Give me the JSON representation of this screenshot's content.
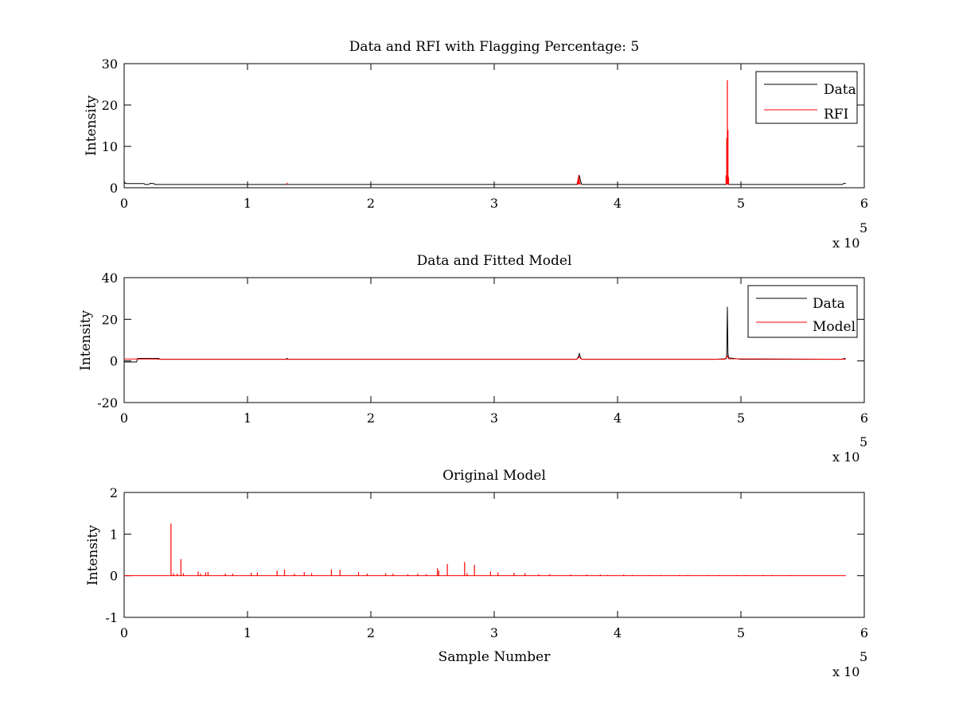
{
  "colors": {
    "data": "#000000",
    "rfi": "#ff0000",
    "model": "#ff0000",
    "axes": "#000000",
    "background": "#ffffff"
  },
  "chart_data": [
    {
      "id": "rfi",
      "type": "line",
      "title": "Data and RFI with Flagging Percentage: 5",
      "xlabel": "",
      "ylabel": "Intensity",
      "xlim": [
        0,
        6
      ],
      "ylim": [
        0,
        30
      ],
      "xticks": [
        0,
        1,
        2,
        3,
        4,
        5,
        6
      ],
      "yticks": [
        0,
        10,
        20,
        30
      ],
      "x_multiplier": "x 10",
      "x_multiplier_exponent": "5",
      "legend": {
        "position": "top-right",
        "entries": [
          "Data",
          "RFI"
        ]
      },
      "series": [
        {
          "name": "Data",
          "color": "#000000",
          "kind": "line",
          "x": [
            0.0,
            0.005,
            0.01,
            0.02,
            0.04,
            0.08,
            0.12,
            0.16,
            0.17,
            0.2,
            0.21,
            0.24,
            0.25,
            0.6,
            1.0,
            1.31,
            1.32,
            1.33,
            2.0,
            3.0,
            3.67,
            3.68,
            3.69,
            3.7,
            3.71,
            4.2,
            4.86,
            4.88,
            4.885,
            4.89,
            4.895,
            4.9,
            4.95,
            5.3,
            5.82,
            5.84,
            5.85
          ],
          "values": [
            0.9,
            1.3,
            1.1,
            1.0,
            1.0,
            1.0,
            1.0,
            1.0,
            0.8,
            0.8,
            1.05,
            1.0,
            0.8,
            0.8,
            0.8,
            0.8,
            0.8,
            0.8,
            0.8,
            0.8,
            0.8,
            1.8,
            3.0,
            1.6,
            0.8,
            0.8,
            0.8,
            0.8,
            3.0,
            3.5,
            2.8,
            0.8,
            0.8,
            0.8,
            0.8,
            1.1,
            1.0
          ]
        },
        {
          "name": "RFI",
          "color": "#ff0000",
          "kind": "spikes",
          "x": [
            1.32,
            3.675,
            3.68,
            3.685,
            3.69,
            3.695,
            3.7,
            4.88,
            4.885,
            4.89,
            4.895,
            4.9
          ],
          "values": [
            1.2,
            1.6,
            2.4,
            3.1,
            2.0,
            1.2,
            0.9,
            3.0,
            12.0,
            26.0,
            14.0,
            2.5
          ]
        }
      ]
    },
    {
      "id": "fit",
      "type": "line",
      "title": "Data and Fitted Model",
      "xlabel": "",
      "ylabel": "Intensity",
      "xlim": [
        0,
        6
      ],
      "ylim": [
        -20,
        40
      ],
      "xticks": [
        0,
        1,
        2,
        3,
        4,
        5,
        6
      ],
      "yticks": [
        -20,
        0,
        20,
        40
      ],
      "x_multiplier": "x 10",
      "x_multiplier_exponent": "5",
      "legend": {
        "position": "top-right",
        "entries": [
          "Data",
          "Model"
        ]
      },
      "series": [
        {
          "name": "Data",
          "color": "#000000",
          "kind": "line",
          "x": [
            0.0,
            0.1,
            0.11,
            0.28,
            0.29,
            1.31,
            1.32,
            1.33,
            3.67,
            3.68,
            3.69,
            3.7,
            3.71,
            4.78,
            4.88,
            4.885,
            4.89,
            4.895,
            4.9,
            5.0,
            5.82,
            5.84,
            5.85
          ],
          "values": [
            -0.5,
            -0.5,
            1.2,
            1.2,
            0.8,
            0.8,
            1.2,
            0.8,
            0.8,
            1.8,
            3.5,
            1.5,
            0.8,
            0.8,
            1.0,
            3.0,
            26.0,
            3.5,
            1.5,
            0.8,
            0.8,
            1.2,
            1.0
          ]
        },
        {
          "name": "Model",
          "color": "#ff0000",
          "kind": "line",
          "x": [
            0.0,
            0.27,
            0.28,
            3.67,
            3.68,
            3.69,
            3.7,
            3.71,
            4.87,
            4.88,
            4.89,
            4.9,
            5.85
          ],
          "values": [
            0.9,
            0.9,
            0.8,
            0.8,
            1.3,
            2.0,
            1.2,
            0.8,
            0.8,
            1.5,
            2.5,
            1.0,
            0.8
          ]
        }
      ]
    },
    {
      "id": "orig",
      "type": "line",
      "title": "Original Model",
      "xlabel": "Sample Number",
      "ylabel": "Intensity",
      "xlim": [
        0,
        6
      ],
      "ylim": [
        -1,
        2
      ],
      "xticks": [
        0,
        1,
        2,
        3,
        4,
        5,
        6
      ],
      "yticks": [
        -1,
        0,
        1,
        2
      ],
      "x_multiplier": "x 10",
      "x_multiplier_exponent": "5",
      "legend": null,
      "series": [
        {
          "name": "",
          "color": "#ff0000",
          "kind": "spikes-baseline",
          "xmax": 5.85,
          "x": [
            0.38,
            0.4,
            0.43,
            0.46,
            0.48,
            0.6,
            0.62,
            0.66,
            0.68,
            0.82,
            0.88,
            1.03,
            1.08,
            1.24,
            1.3,
            1.38,
            1.46,
            1.52,
            1.68,
            1.75,
            1.9,
            1.97,
            2.12,
            2.18,
            2.3,
            2.38,
            2.45,
            2.54,
            2.55,
            2.62,
            2.76,
            2.78,
            2.84,
            2.97,
            3.03,
            3.16,
            3.25,
            3.36,
            3.45,
            3.62,
            3.75,
            3.86,
            3.92,
            4.05,
            4.12,
            4.26,
            4.35,
            4.5,
            4.57,
            4.73,
            4.82,
            4.97,
            5.04,
            5.18,
            5.25,
            5.4
          ],
          "values": [
            1.25,
            0.06,
            0.05,
            0.4,
            0.06,
            0.1,
            0.05,
            0.08,
            0.09,
            0.05,
            0.05,
            0.07,
            0.08,
            0.12,
            0.15,
            0.05,
            0.09,
            0.06,
            0.15,
            0.14,
            0.09,
            0.05,
            0.06,
            0.05,
            0.04,
            0.05,
            0.04,
            0.18,
            0.12,
            0.28,
            0.33,
            0.06,
            0.26,
            0.1,
            0.08,
            0.07,
            0.06,
            0.04,
            0.04,
            0.03,
            0.03,
            0.03,
            0.02,
            0.03,
            0.02,
            0.02,
            0.02,
            0.02,
            0.02,
            0.02,
            0.02,
            0.02,
            0.02,
            0.02,
            0.02,
            0.02
          ]
        }
      ]
    }
  ]
}
